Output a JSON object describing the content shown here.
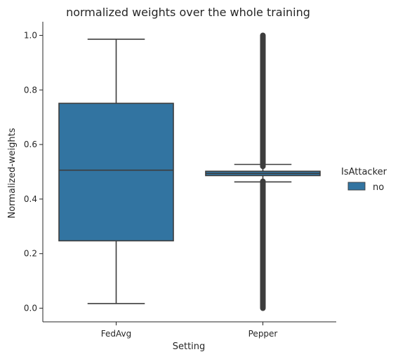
{
  "chart_data": {
    "type": "box",
    "title": "normalized weights over the whole training",
    "xlabel": "Setting",
    "ylabel": "Normalized-weights",
    "ylim": [
      -0.05,
      1.05
    ],
    "yticks": [
      0.0,
      0.2,
      0.4,
      0.6,
      0.8,
      1.0
    ],
    "ytick_labels": [
      "0.0",
      "0.2",
      "0.4",
      "0.6",
      "0.8",
      "1.0"
    ],
    "categories": [
      "FedAvg",
      "Pepper"
    ],
    "grid": false,
    "legend": {
      "title": "IsAttacker",
      "placement": "right",
      "entries": [
        {
          "label": "no",
          "color": "#3274a1"
        }
      ]
    },
    "series": [
      {
        "name": "no",
        "color": "#3274a1",
        "boxes": [
          {
            "category": "FedAvg",
            "whisker_low": 0.017,
            "q1": 0.247,
            "median": 0.506,
            "q3": 0.751,
            "whisker_high": 0.986,
            "outliers_range": null
          },
          {
            "category": "Pepper",
            "whisker_low": 0.463,
            "q1": 0.486,
            "median": 0.494,
            "q3": 0.502,
            "whisker_high": 0.527,
            "outliers_range": [
              [
                0.0,
                0.465
              ],
              [
                0.52,
                1.0
              ]
            ]
          }
        ]
      }
    ]
  }
}
